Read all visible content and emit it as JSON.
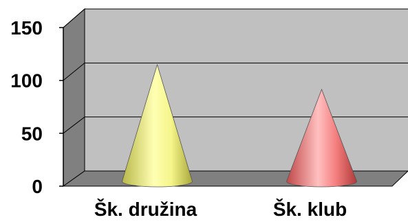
{
  "chart_data": {
    "type": "bar",
    "style": "3d-cone",
    "title": "",
    "xlabel": "",
    "ylabel": "",
    "categories": [
      "Šk. družina",
      "Šk. klub"
    ],
    "values": [
      118,
      93
    ],
    "ylim": [
      0,
      150
    ],
    "yticks": [
      "0",
      "50",
      "100",
      "150"
    ],
    "grid": true,
    "legend": "none",
    "colors": {
      "cones": [
        "#ffff99",
        "#ff8080"
      ],
      "back_wall": "#c0c0c0",
      "side_wall": "#808080",
      "floor": "#808080"
    }
  }
}
